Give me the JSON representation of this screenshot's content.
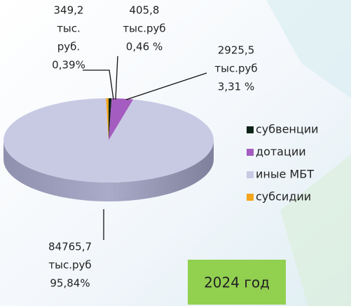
{
  "chart_data": {
    "type": "pie",
    "categories": [
      "субвенции",
      "дотации",
      "иные МБТ",
      "субсидии"
    ],
    "values": [
      405.8,
      2925.5,
      84765.7,
      349.2
    ],
    "value_labels": [
      "405,8",
      "2925,5",
      "84765,7",
      "349,2"
    ],
    "unit_labels": [
      [
        "тыс.руб"
      ],
      [
        "тыс.руб"
      ],
      [
        "тыс.руб"
      ],
      [
        "тыс.",
        "руб."
      ]
    ],
    "percents": [
      0.46,
      3.31,
      95.84,
      0.39
    ],
    "percent_labels": [
      "0,46 %",
      "3,31 %",
      "95,84%",
      "0,39%"
    ],
    "colors": [
      "#0c2418",
      "#a45cc0",
      "#c8cae4",
      "#f4a51c"
    ],
    "legend": "right",
    "annotation": "2024 год"
  }
}
